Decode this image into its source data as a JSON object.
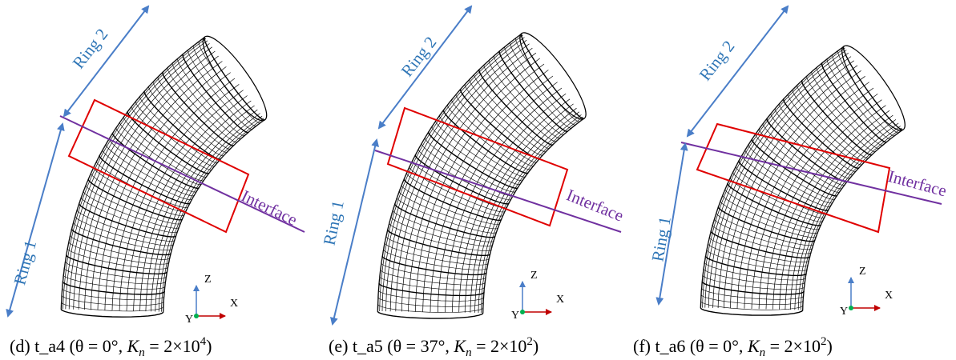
{
  "panels": [
    {
      "caption": {
        "prefix": "(d)  t_a4 (θ = 0°, ",
        "k": "K",
        "sub": "n",
        "eq": " = 2×10",
        "exp": "4",
        "close": ")"
      },
      "ring1": "Ring 1",
      "ring2": "Ring 2",
      "interface": "Interface",
      "axes": {
        "z": "Z",
        "x": "X",
        "y": "Y"
      }
    },
    {
      "caption": {
        "prefix": "(e)  t_a5 (θ = 37°, ",
        "k": "K",
        "sub": "n",
        "eq": " = 2×10",
        "exp": "2",
        "close": ")"
      },
      "ring1": "Ring 1",
      "ring2": "Ring 2",
      "interface": "Interface",
      "axes": {
        "z": "Z",
        "x": "X",
        "y": "Y"
      }
    },
    {
      "caption": {
        "prefix": "(f)  t_a6 (θ = 0°, ",
        "k": "K",
        "sub": "n",
        "eq": " = 2×10",
        "exp": "2",
        "close": ")"
      },
      "ring1": "Ring 1",
      "ring2": "Ring 2",
      "interface": "Interface",
      "axes": {
        "z": "Z",
        "x": "X",
        "y": "Y"
      }
    }
  ]
}
